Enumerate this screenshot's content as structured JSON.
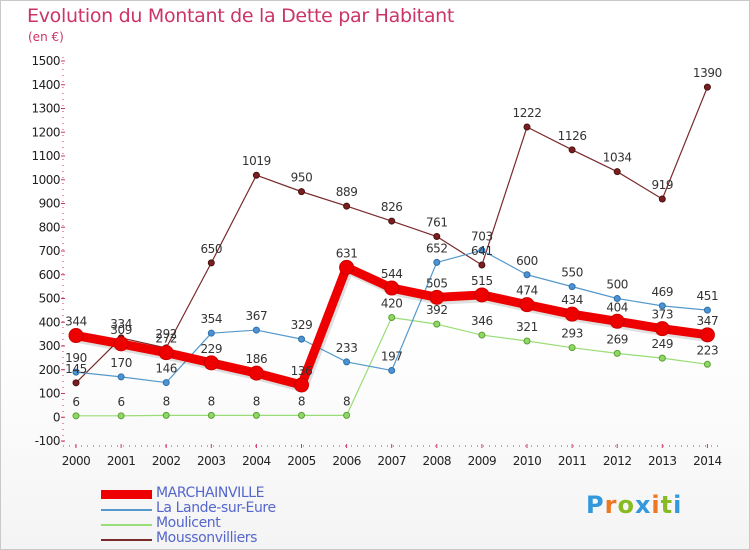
{
  "chart_data": {
    "type": "line",
    "title": "Evolution du Montant de la Dette par Habitant",
    "subtitle": "(en €)",
    "x": [
      "2000",
      "2001",
      "2002",
      "2003",
      "2004",
      "2005",
      "2006",
      "2007",
      "2008",
      "2009",
      "2010",
      "2011",
      "2012",
      "2013",
      "2014"
    ],
    "y_ticks": [
      "-100",
      "0",
      "100",
      "200",
      "300",
      "400",
      "500",
      "600",
      "700",
      "800",
      "900",
      "1000",
      "1100",
      "1200",
      "1300",
      "1400",
      "1500"
    ],
    "ylim": [
      -100,
      1500
    ],
    "grid": false,
    "legend_position": "bottom-left",
    "series": [
      {
        "name": "Moussonvilliers",
        "color": "#7a2a2a",
        "values": [
          145,
          334,
          292,
          650,
          1019,
          950,
          889,
          826,
          761,
          641,
          1222,
          1126,
          1034,
          919,
          1390
        ],
        "labels": [
          "145",
          "334",
          "292",
          "650",
          "1019",
          "950",
          "889",
          "826",
          "761",
          "641",
          "1222",
          "1126",
          "1034",
          "919",
          "1390"
        ]
      },
      {
        "name": "Moulicent",
        "color": "#99dd77",
        "values": [
          6,
          6,
          8,
          8,
          8,
          8,
          8,
          420,
          392,
          346,
          321,
          293,
          269,
          249,
          223
        ],
        "labels": [
          "6",
          "6",
          "8",
          "8",
          "8",
          "8",
          "8",
          "420",
          "392",
          "346",
          "321",
          "293",
          "269",
          "249",
          "223"
        ]
      },
      {
        "name": "La Lande-sur-Eure",
        "color": "#5599cc",
        "values": [
          190,
          170,
          146,
          354,
          367,
          329,
          233,
          197,
          652,
          703,
          600,
          550,
          500,
          469,
          451
        ],
        "labels": [
          "190",
          "170",
          "146",
          "354",
          "367",
          "329",
          "233",
          "197",
          "652",
          "703",
          "600",
          "550",
          "500",
          "469",
          "451"
        ]
      },
      {
        "name": "MARCHAINVILLE",
        "color": "#ee0000",
        "values": [
          344,
          309,
          272,
          229,
          186,
          136,
          631,
          544,
          505,
          515,
          474,
          434,
          404,
          373,
          347
        ],
        "labels": [
          "344",
          "309",
          "272",
          "229",
          "186",
          "136",
          "631",
          "544",
          "505",
          "515",
          "474",
          "434",
          "404",
          "373",
          "347"
        ]
      }
    ]
  },
  "legend": [
    {
      "name": "MARCHAINVILLE",
      "color": "#ee0000"
    },
    {
      "name": "La Lande-sur-Eure",
      "color": "#5599cc"
    },
    {
      "name": "Moulicent",
      "color": "#99dd77"
    },
    {
      "name": "Moussonvilliers",
      "color": "#7a2a2a"
    }
  ],
  "logo": {
    "letters": [
      "P",
      "r",
      "o",
      "x",
      "i",
      "t",
      "i"
    ],
    "colors": [
      "#3399dd",
      "#ee7722",
      "#88bb22",
      "#3399dd",
      "#ee7722",
      "#88bb22",
      "#3399dd"
    ]
  }
}
